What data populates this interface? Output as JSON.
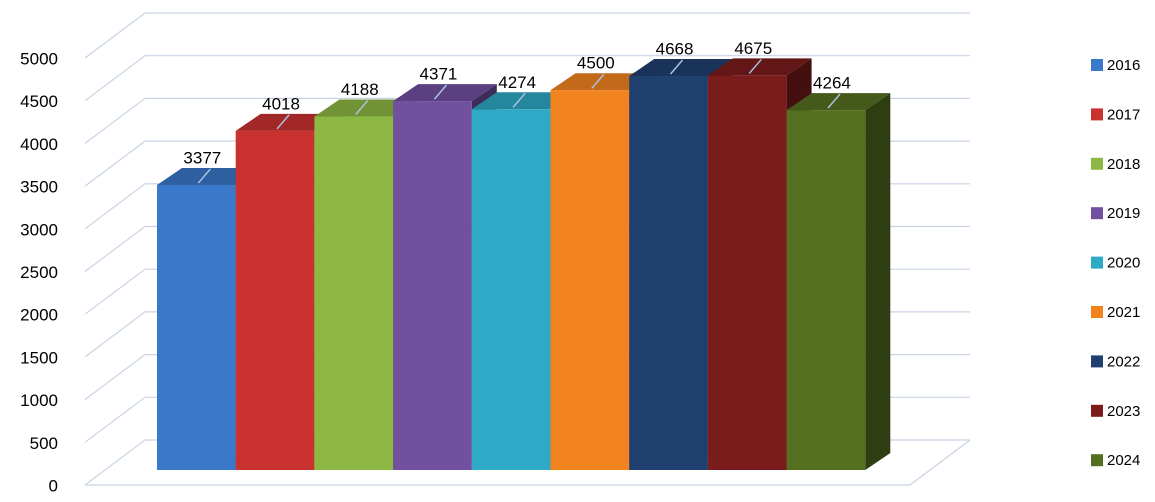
{
  "chart_data": {
    "type": "bar3d",
    "categories": [
      null
    ],
    "series": [
      {
        "name": "2016",
        "color": "#3a78c9",
        "values": [
          3377
        ]
      },
      {
        "name": "2017",
        "color": "#c9322f",
        "values": [
          4018
        ]
      },
      {
        "name": "2018",
        "color": "#8db843",
        "values": [
          4188
        ]
      },
      {
        "name": "2019",
        "color": "#7150a0",
        "values": [
          4371
        ]
      },
      {
        "name": "2020",
        "color": "#2ea9c6",
        "values": [
          4274
        ]
      },
      {
        "name": "2021",
        "color": "#f2841f",
        "values": [
          4500
        ]
      },
      {
        "name": "2022",
        "color": "#1f406f",
        "values": [
          4668
        ]
      },
      {
        "name": "2023",
        "color": "#7a1c1c",
        "values": [
          4675
        ]
      },
      {
        "name": "2024",
        "color": "#556f20",
        "values": [
          4264
        ]
      }
    ],
    "ylim": [
      0,
      5000
    ],
    "yticks": [
      0,
      500,
      1000,
      1500,
      2000,
      2500,
      3000,
      3500,
      4000,
      4500,
      5000
    ],
    "grid": true,
    "legend": "right"
  }
}
